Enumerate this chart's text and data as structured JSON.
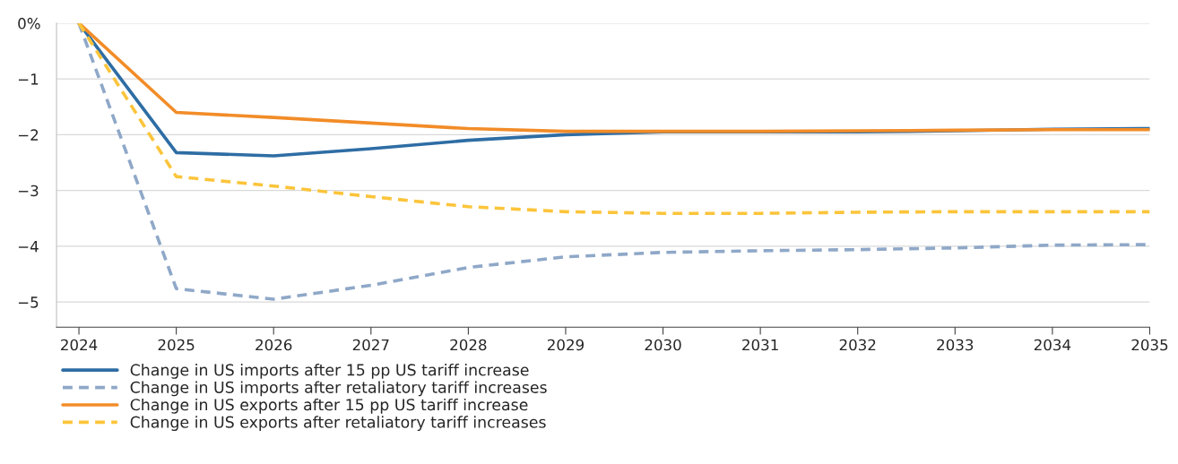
{
  "chart_data": {
    "type": "line",
    "x": [
      2024,
      2025,
      2026,
      2027,
      2028,
      2029,
      2030,
      2031,
      2032,
      2033,
      2034,
      2035
    ],
    "xlim": [
      2023.77,
      2035
    ],
    "xticks": [
      2024,
      2025,
      2026,
      2027,
      2028,
      2029,
      2030,
      2031,
      2032,
      2033,
      2034,
      2035
    ],
    "ylim": [
      -5.45,
      0
    ],
    "yticks": [
      {
        "value": 0,
        "label": "0%"
      },
      {
        "value": -1,
        "label": "−1"
      },
      {
        "value": -2,
        "label": "−2"
      },
      {
        "value": -3,
        "label": "−3"
      },
      {
        "value": -4,
        "label": "−4"
      },
      {
        "value": -5,
        "label": "−5"
      }
    ],
    "grid": "y",
    "legend": "bottom left",
    "series": [
      {
        "name": "Change in US imports after 15 pp US tariff increase",
        "color": "#2e6da4",
        "line_style": "solid",
        "values": [
          0,
          -2.32,
          -2.38,
          -2.25,
          -2.1,
          -2.0,
          -1.95,
          -1.95,
          -1.95,
          -1.93,
          -1.9,
          -1.89
        ]
      },
      {
        "name": "Change in US imports after retaliatory tariff increases",
        "color": "#8fa8c8",
        "line_style": "dashed",
        "values": [
          0,
          -4.76,
          -4.95,
          -4.7,
          -4.38,
          -4.19,
          -4.11,
          -4.08,
          -4.06,
          -4.03,
          -3.98,
          -3.97
        ]
      },
      {
        "name": "Change in US exports after 15 pp US tariff increase",
        "color": "#f28c28",
        "line_style": "solid",
        "values": [
          0,
          -1.6,
          -1.69,
          -1.79,
          -1.89,
          -1.94,
          -1.94,
          -1.94,
          -1.93,
          -1.92,
          -1.91,
          -1.91
        ]
      },
      {
        "name": "Change in US exports after retaliatory tariff increases",
        "color": "#fbc43a",
        "line_style": "dashed",
        "values": [
          0,
          -2.75,
          -2.92,
          -3.11,
          -3.29,
          -3.38,
          -3.41,
          -3.41,
          -3.39,
          -3.38,
          -3.38,
          -3.38
        ]
      }
    ]
  }
}
